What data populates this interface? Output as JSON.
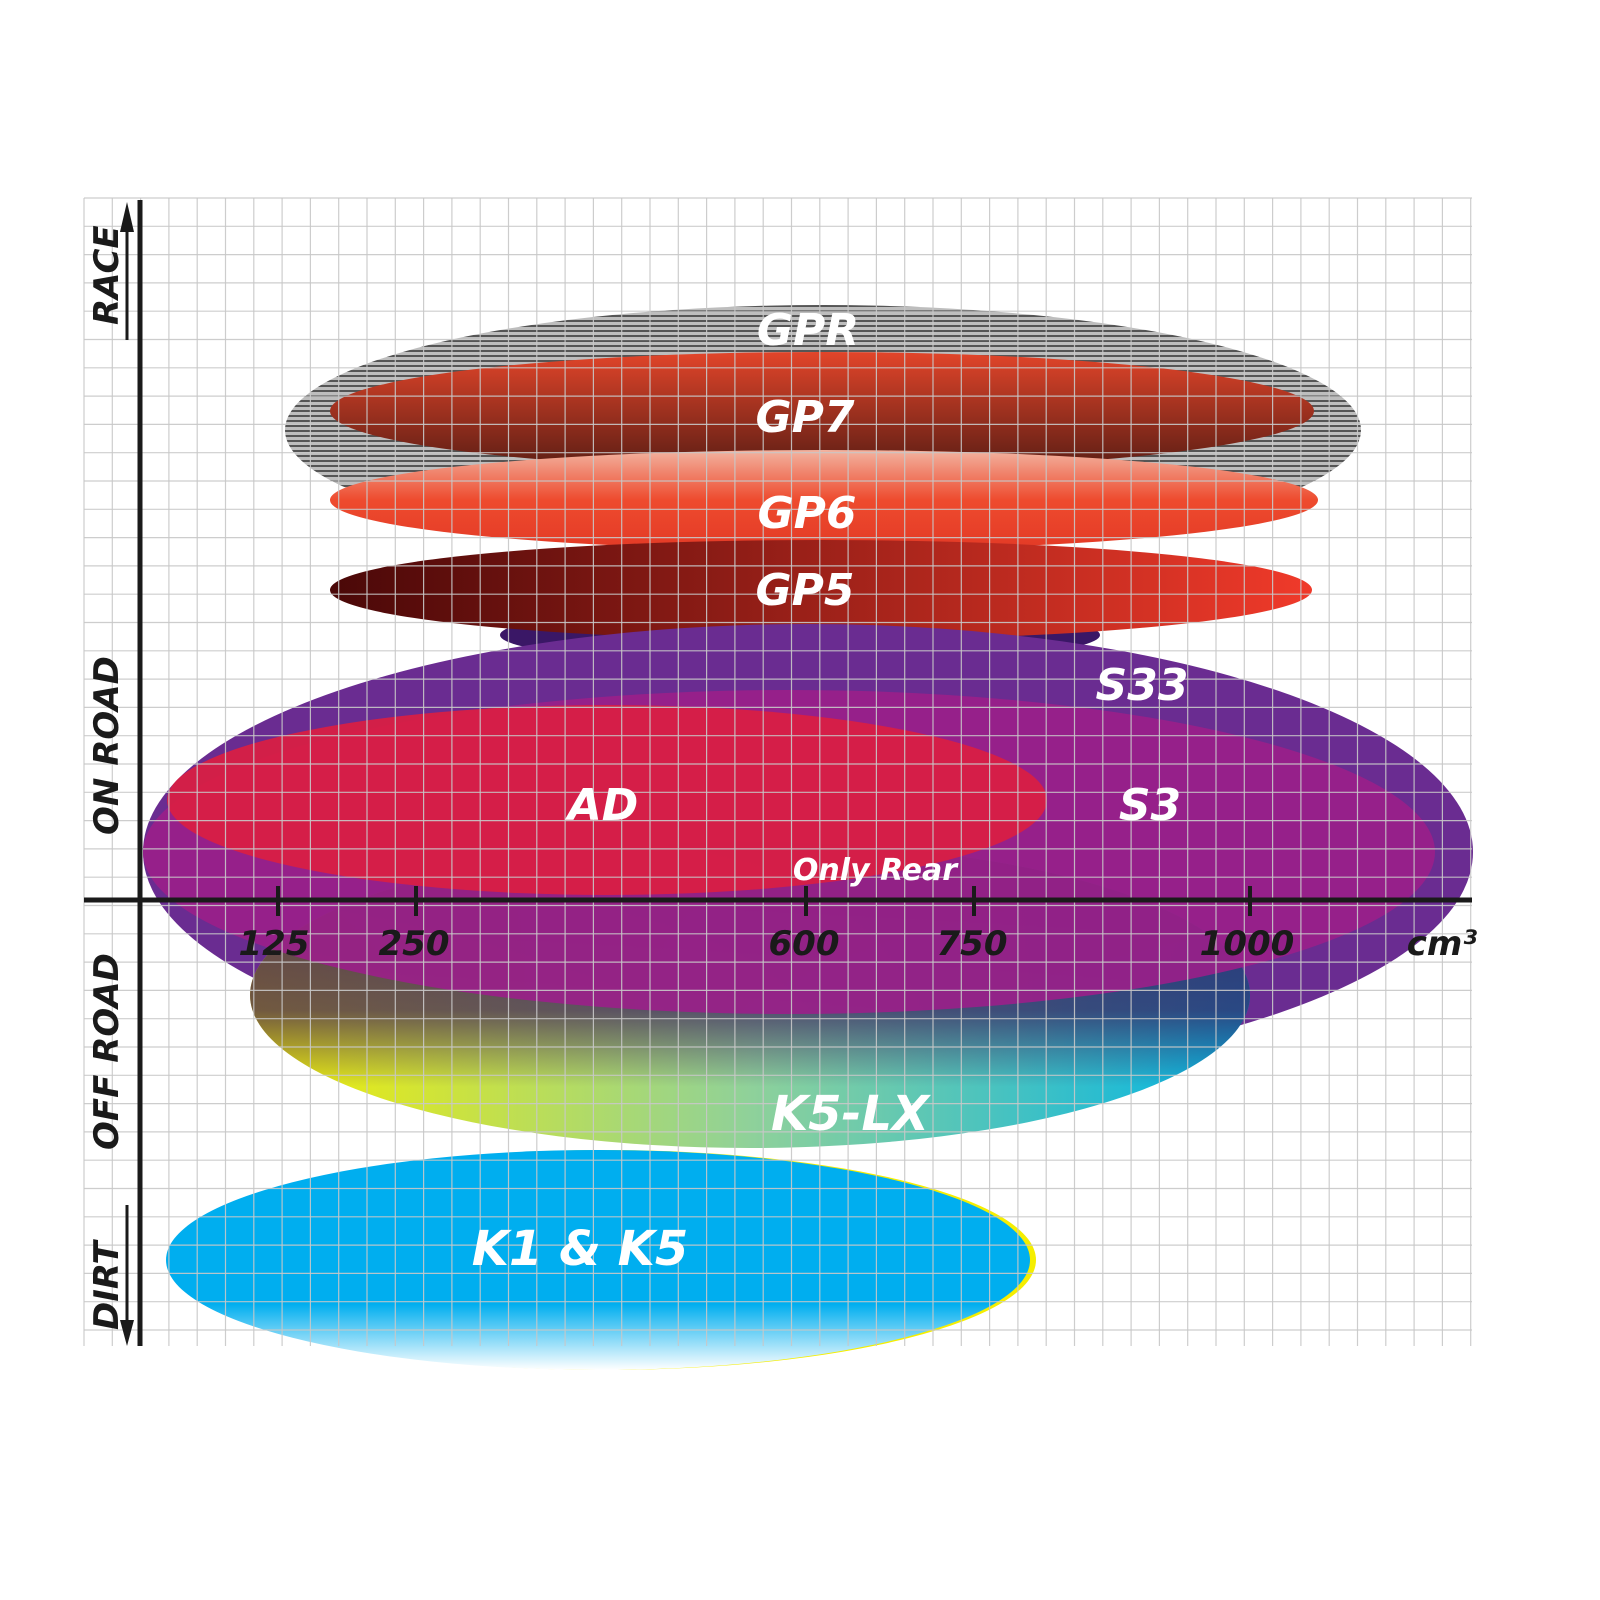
{
  "chart_data": {
    "type": "ellipse-positioning",
    "xlabel": "cm³",
    "x_ticks": [
      "125",
      "250",
      "600",
      "750",
      "1000"
    ],
    "y_categories": [
      "RACE",
      "ON ROAD",
      "OFF ROAD",
      "DIRT"
    ],
    "grid": true,
    "series": [
      {
        "name": "GPR",
        "color": "#9a9a9a",
        "pattern": "stripes"
      },
      {
        "name": "GP7",
        "color": "#c8452e"
      },
      {
        "name": "GP6",
        "color": "#ee4b2e"
      },
      {
        "name": "GP5",
        "color": "#7a1410"
      },
      {
        "name": "S33",
        "color": "#6a2c91"
      },
      {
        "name": "S3",
        "color": "#9b1f8a"
      },
      {
        "name": "AD",
        "color": "#d81f45"
      },
      {
        "name": "K5-LX",
        "color": "#1fb7d9",
        "note": "Only Rear"
      },
      {
        "name": "K1 & K5",
        "color": "#00aeef"
      }
    ]
  }
}
